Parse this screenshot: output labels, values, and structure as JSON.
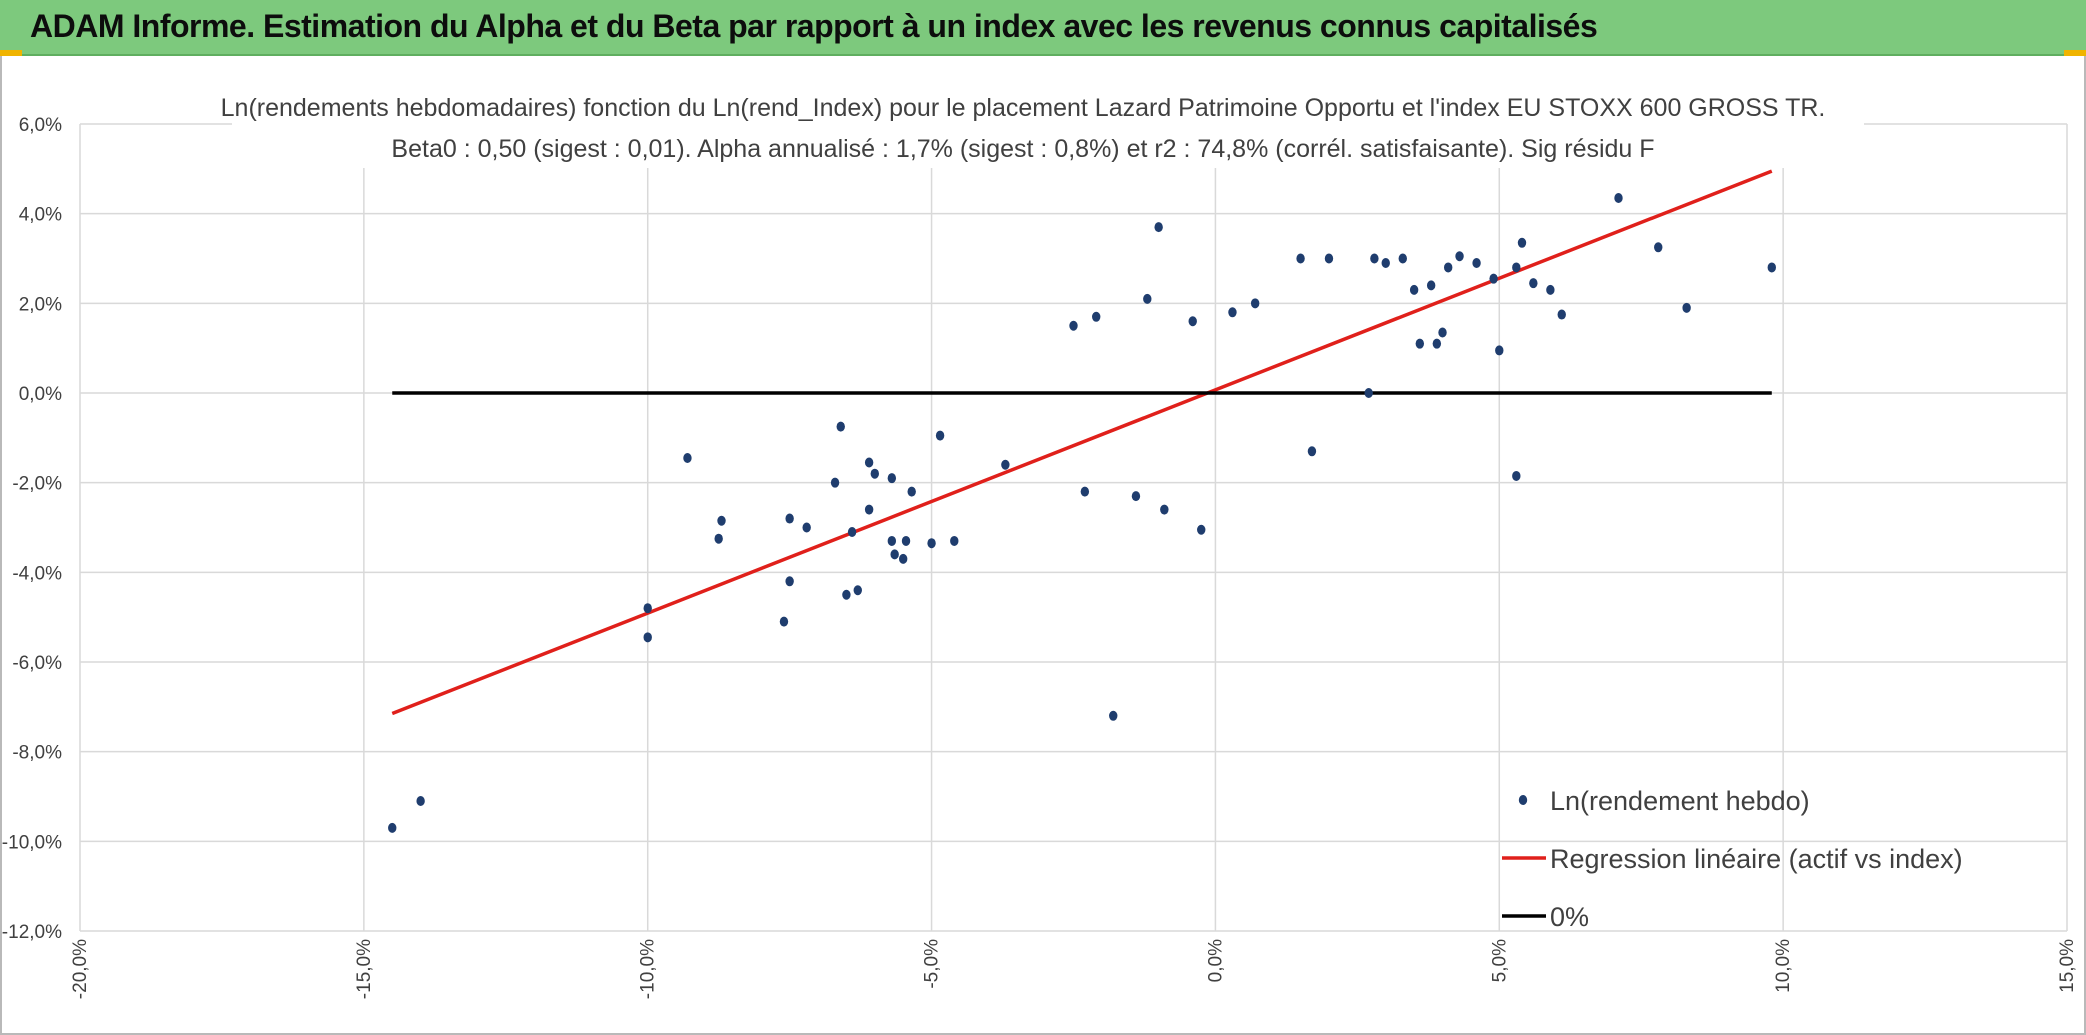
{
  "header": {
    "title": "ADAM Informe. Estimation du Alpha et du Beta par rapport à un index avec les revenus connus capitalisés"
  },
  "colors": {
    "banner": "#7dc97d",
    "points": "#1f3d6e",
    "regression": "#e0201b",
    "zero_line": "#000000",
    "grid": "#d9d9d9"
  },
  "chart_data": {
    "type": "scatter",
    "title": "Ln(rendements hebdomadaires) fonction du Ln(rend_Index) pour le placement Lazard Patrimoine Opportu et l'index EU STOXX 600 GROSS TR.",
    "subtitle": "Beta0 : 0,50 (sigest : 0,01). Alpha annualisé : 1,7% (sigest : 0,8%) et r2 : 74,8% (corrél. satisfaisante). Sig résidu F",
    "xlabel": "",
    "ylabel": "",
    "xlim": [
      -20,
      15
    ],
    "ylim": [
      -12,
      6
    ],
    "x_ticks": [
      "-20,0%",
      "-15,0%",
      "-10,0%",
      "-5,0%",
      "0,0%",
      "5,0%",
      "10,0%",
      "15,0%"
    ],
    "y_ticks": [
      "6,0%",
      "4,0%",
      "2,0%",
      "0,0%",
      "-2,0%",
      "-4,0%",
      "-6,0%",
      "-8,0%",
      "-10,0%",
      "-12,0%"
    ],
    "grid": true,
    "legend_position": "bottom-right",
    "series": [
      {
        "name": "Ln(rendement hebdo)",
        "kind": "points",
        "points": [
          [
            -14.5,
            -9.7
          ],
          [
            -14.0,
            -9.1
          ],
          [
            -10.0,
            -4.8
          ],
          [
            -10.0,
            -5.45
          ],
          [
            -9.3,
            -1.45
          ],
          [
            -8.7,
            -2.85
          ],
          [
            -8.75,
            -3.25
          ],
          [
            -7.6,
            -5.1
          ],
          [
            -7.5,
            -4.2
          ],
          [
            -7.5,
            -2.8
          ],
          [
            -7.2,
            -3.0
          ],
          [
            -6.7,
            -2.0
          ],
          [
            -6.6,
            -0.75
          ],
          [
            -6.4,
            -3.1
          ],
          [
            -6.5,
            -4.5
          ],
          [
            -6.3,
            -4.4
          ],
          [
            -6.1,
            -1.55
          ],
          [
            -6.1,
            -2.6
          ],
          [
            -6.0,
            -1.8
          ],
          [
            -5.7,
            -1.9
          ],
          [
            -5.7,
            -3.3
          ],
          [
            -5.65,
            -3.6
          ],
          [
            -5.5,
            -3.7
          ],
          [
            -5.45,
            -3.3
          ],
          [
            -5.35,
            -2.2
          ],
          [
            -5.0,
            -3.35
          ],
          [
            -4.85,
            -0.95
          ],
          [
            -4.6,
            -3.3
          ],
          [
            -1.8,
            -7.2
          ],
          [
            -1.0,
            3.7
          ],
          [
            -2.5,
            1.5
          ],
          [
            -2.1,
            1.7
          ],
          [
            -1.2,
            2.1
          ],
          [
            -0.25,
            -3.05
          ],
          [
            -0.9,
            -2.6
          ],
          [
            -2.3,
            -2.2
          ],
          [
            -1.4,
            -2.3
          ],
          [
            -3.7,
            -1.6
          ],
          [
            1.7,
            -1.3
          ],
          [
            2.7,
            0.0
          ],
          [
            5.0,
            0.95
          ],
          [
            5.3,
            -1.85
          ],
          [
            7.1,
            4.35
          ],
          [
            7.8,
            3.25
          ],
          [
            8.3,
            1.9
          ],
          [
            9.8,
            2.8
          ],
          [
            6.1,
            1.75
          ],
          [
            5.9,
            2.3
          ],
          [
            5.6,
            2.45
          ],
          [
            5.4,
            3.35
          ],
          [
            5.3,
            2.8
          ],
          [
            4.9,
            2.55
          ],
          [
            4.6,
            2.9
          ],
          [
            4.3,
            3.05
          ],
          [
            4.1,
            2.8
          ],
          [
            3.8,
            2.4
          ],
          [
            3.6,
            1.1
          ],
          [
            3.9,
            1.1
          ],
          [
            4.0,
            1.35
          ],
          [
            3.3,
            3.0
          ],
          [
            3.5,
            2.3
          ],
          [
            1.5,
            3.0
          ],
          [
            2.0,
            3.0
          ],
          [
            2.8,
            3.0
          ],
          [
            3.0,
            2.9
          ],
          [
            0.3,
            1.8
          ],
          [
            -0.4,
            1.6
          ],
          [
            0.7,
            2.0
          ]
        ]
      },
      {
        "name": "Regression linéaire (actif vs index)",
        "kind": "line",
        "points": [
          [
            -14.5,
            -7.15
          ],
          [
            9.8,
            4.95
          ]
        ]
      },
      {
        "name": "0%",
        "kind": "line",
        "points": [
          [
            -14.5,
            0.0
          ],
          [
            9.8,
            0.0
          ]
        ]
      }
    ]
  }
}
